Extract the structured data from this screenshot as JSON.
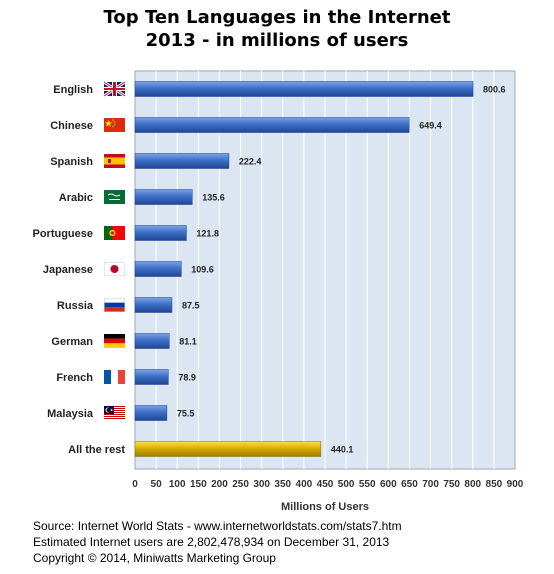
{
  "chart_data": {
    "type": "bar",
    "orientation": "horizontal",
    "title_lines": [
      "Top Ten Languages in the Internet",
      "2013 - in millions of users"
    ],
    "xlabel": "Millions of Users",
    "ylabel": "",
    "xlim": [
      0,
      900
    ],
    "xticks": [
      0,
      50,
      100,
      150,
      200,
      250,
      300,
      350,
      400,
      450,
      500,
      550,
      600,
      650,
      700,
      750,
      800,
      850,
      900
    ],
    "grid": true,
    "legend": "none",
    "categories": [
      "English",
      "Chinese",
      "Spanish",
      "Arabic",
      "Portuguese",
      "Japanese",
      "Russia",
      "German",
      "French",
      "Malaysia",
      "All the rest"
    ],
    "values": [
      800.6,
      649.4,
      222.4,
      135.6,
      121.8,
      109.6,
      87.5,
      81.1,
      78.9,
      75.5,
      440.1
    ],
    "value_labels": [
      "800.6",
      "649.4",
      "222.4",
      "135.6",
      "121.8",
      "109.6",
      "87.5",
      "81.1",
      "78.9",
      "75.5",
      "440.1"
    ],
    "flags": [
      "uk-flag-icon",
      "china-flag-icon",
      "spain-flag-icon",
      "saudi-arabia-flag-icon",
      "portugal-flag-icon",
      "japan-flag-icon",
      "russia-flag-icon",
      "germany-flag-icon",
      "france-flag-icon",
      "malaysia-flag-icon",
      ""
    ],
    "colors": {
      "bar": "#3a6cc4",
      "bar_highlight": "#d4aa00",
      "plot_background": "#dce6f2",
      "grid": "#ffffff"
    }
  },
  "footer": {
    "source": "Source: Internet World Stats - www.internetworldstats.com/stats7.htm",
    "estimate": "Estimated Internet users are 2,802,478,934 on December 31, 2013",
    "copyright": "Copyright © 2014, Miniwatts Marketing Group"
  }
}
